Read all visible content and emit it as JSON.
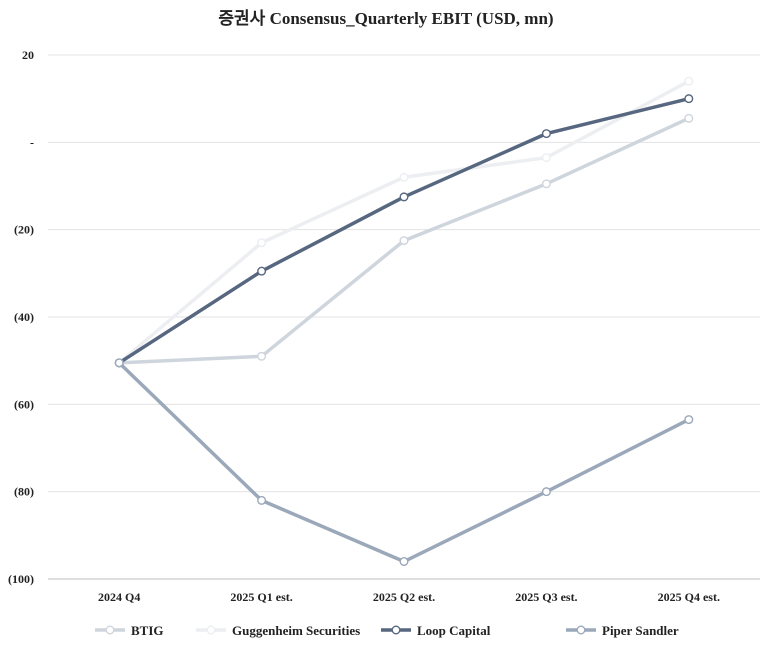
{
  "chart_data": {
    "type": "line",
    "title": "증권사 Consensus_Quarterly EBIT (USD, mn)",
    "xlabel": "",
    "ylabel": "",
    "categories": [
      "2024 Q4",
      "2025 Q1 est.",
      "2025 Q2 est.",
      "2025 Q3 est.",
      "2025 Q4 est."
    ],
    "ylim": [
      -100,
      20
    ],
    "yticks": [
      20,
      0,
      -20,
      -40,
      -60,
      -80,
      -100
    ],
    "ytick_labels": [
      "20",
      "-",
      "(20)",
      "(40)",
      "(60)",
      "(80)",
      "(100)"
    ],
    "grid": true,
    "legend_position": "bottom",
    "series": [
      {
        "name": "BTIG",
        "color": "#cfd5dd",
        "values": [
          -50.5,
          -49,
          -22.5,
          -9.5,
          5.5
        ]
      },
      {
        "name": "Guggenheim Securities",
        "color": "#eceef1",
        "values": [
          -50.5,
          -23,
          -8,
          -3.5,
          14
        ]
      },
      {
        "name": "Loop Capital",
        "color": "#56677f",
        "values": [
          -50.5,
          -29.5,
          -12.5,
          2,
          10
        ]
      },
      {
        "name": "Piper Sandler",
        "color": "#9aa8ba",
        "values": [
          -50.5,
          -82,
          -96,
          -80,
          -63.5
        ]
      }
    ]
  }
}
